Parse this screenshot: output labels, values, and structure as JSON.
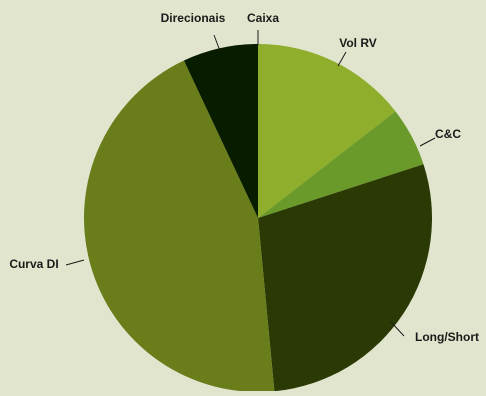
{
  "chart_data": {
    "type": "pie",
    "title": "",
    "slices": [
      {
        "label": "Caixa",
        "value": 0.0,
        "color": "#8fae2c"
      },
      {
        "label": "Vol RV",
        "value": 14.5,
        "color": "#8fae2c"
      },
      {
        "label": "C&C",
        "value": 5.5,
        "color": "#6a9a2a"
      },
      {
        "label": "Long/Short",
        "value": 28.5,
        "color": "#2b3a05"
      },
      {
        "label": "Curva DI",
        "value": 44.5,
        "color": "#6a7d1b"
      },
      {
        "label": "Direcionais",
        "value": 7.0,
        "color": "#081c00"
      }
    ],
    "start_angle_deg": 0,
    "direction": "clockwise",
    "legend": "none",
    "labels": "outside with leader lines"
  }
}
